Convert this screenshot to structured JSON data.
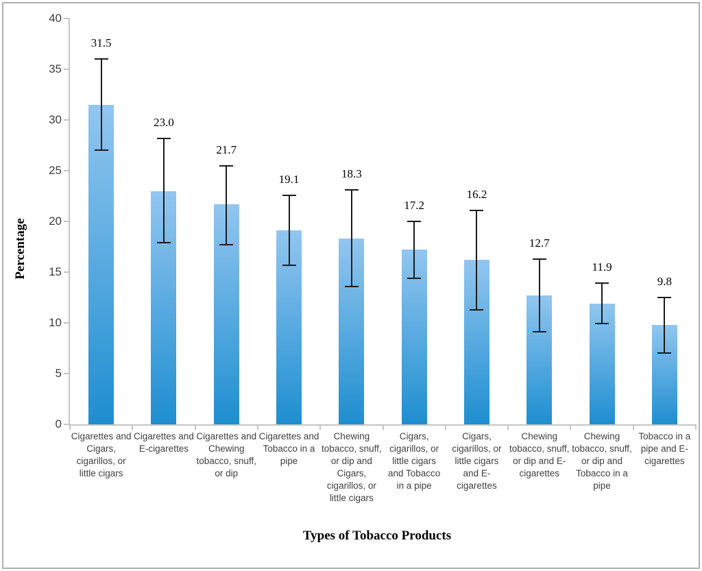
{
  "page": {
    "background": "#ffffff",
    "frame_border_color": "#b0b0b0"
  },
  "chart_data": {
    "type": "bar",
    "title": "",
    "xlabel": "Types of Tobacco Products",
    "ylabel": "Percentage",
    "ylim": [
      0,
      40
    ],
    "yticks": [
      0,
      5,
      10,
      15,
      20,
      25,
      30,
      35,
      40
    ],
    "grid": false,
    "legend": false,
    "bar_color_top": "#92c6f0",
    "bar_color_bottom": "#1e8ed0",
    "axis_color": "#c4c4c4",
    "error_bar_color": "#1a1a1a",
    "categories": [
      "Cigarettes and Cigars, cigarillos, or little cigars",
      "Cigarettes and E-cigarettes",
      "Cigarettes and Chewing tobacco, snuff, or dip",
      "Cigarettes and Tobacco in a pipe",
      "Chewing tobacco, snuff, or dip and Cigars, cigarillos, or little cigars",
      "Cigars, cigarillos, or little cigars and Tobacco in a pipe",
      "Cigars, cigarillos, or little cigars and E-cigarettes",
      "Chewing tobacco, snuff, or dip and E-cigarettes",
      "Chewing tobacco, snuff, or dip and Tobacco in a pipe",
      "Tobacco in a pipe and E-cigarettes"
    ],
    "values": [
      31.5,
      23.0,
      21.7,
      19.1,
      18.3,
      17.2,
      16.2,
      12.7,
      11.9,
      9.8
    ],
    "value_labels": [
      "31.5",
      "23.0",
      "21.7",
      "19.1",
      "18.3",
      "17.2",
      "16.2",
      "12.7",
      "11.9",
      "9.8"
    ],
    "error_low": [
      27.0,
      17.9,
      17.7,
      15.7,
      13.6,
      14.4,
      11.3,
      9.1,
      9.9,
      7.0
    ],
    "error_high": [
      36.0,
      28.2,
      25.5,
      22.6,
      23.1,
      20.0,
      21.1,
      16.3,
      13.9,
      12.5
    ]
  }
}
